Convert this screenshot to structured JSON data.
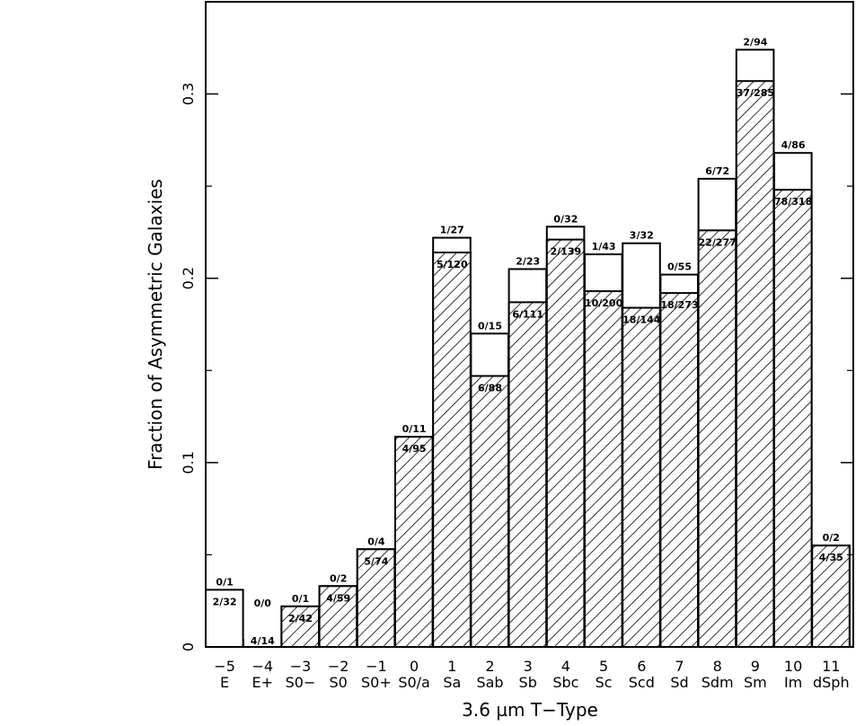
{
  "chart_data": {
    "type": "bar",
    "title": "",
    "xlabel": "3.6 µm T−Type",
    "ylabel": "Fraction of Asymmetric Galaxies",
    "ylim": [
      0,
      0.35
    ],
    "y_ticks": [
      "0",
      "0.1",
      "0.2",
      "0.3"
    ],
    "categories": [
      "E",
      "E+",
      "S0−",
      "S0",
      "S0+",
      "S0/a",
      "Sa",
      "Sab",
      "Sb",
      "Sbc",
      "Sc",
      "Scd",
      "Sd",
      "Sdm",
      "Sm",
      "Im",
      "dSph"
    ],
    "ttypes": [
      "−5",
      "−4",
      "−3",
      "−2",
      "−1",
      "0",
      "1",
      "2",
      "3",
      "4",
      "5",
      "6",
      "7",
      "8",
      "9",
      "10",
      "11"
    ],
    "series": [
      {
        "values": [
          0.0,
          0.0,
          0.022,
          0.033,
          0.053,
          0.114,
          0.214,
          0.147,
          0.187,
          0.221,
          0.193,
          0.184,
          0.192,
          0.226,
          0.307,
          0.248,
          0.055
        ],
        "labels": [
          "2/32",
          "4/14",
          "2/42",
          "4/59",
          "5/74",
          "4/95",
          "5/120",
          "6/88",
          "6/111",
          "2/139",
          "10/200",
          "18/144",
          "18/273",
          "22/277",
          "37/285",
          "78/318",
          "4/35"
        ]
      },
      {
        "values": [
          0.031,
          0.0,
          0.022,
          0.033,
          0.053,
          0.114,
          0.222,
          0.17,
          0.205,
          0.228,
          0.213,
          0.219,
          0.202,
          0.254,
          0.324,
          0.268,
          0.055
        ],
        "labels": [
          "0/1",
          "0/0",
          "0/1",
          "0/2",
          "0/4",
          "0/11",
          "1/27",
          "0/15",
          "2/23",
          "0/32",
          "1/43",
          "3/32",
          "0/55",
          "6/72",
          "2/94",
          "4/86",
          "0/2"
        ]
      }
    ],
    "grid": false,
    "legend": "none"
  }
}
